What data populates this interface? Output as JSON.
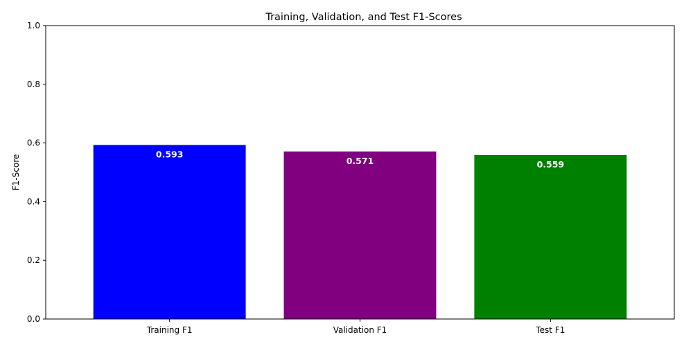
{
  "chart_data": {
    "type": "bar",
    "title": "Training, Validation, and Test F1-Scores",
    "xlabel": "",
    "ylabel": "F1-Score",
    "categories": [
      "Training F1",
      "Validation F1",
      "Test F1"
    ],
    "values": [
      0.593,
      0.571,
      0.559
    ],
    "value_labels": [
      "0.593",
      "0.571",
      "0.559"
    ],
    "colors": [
      "#0000ff",
      "#800080",
      "#008000"
    ],
    "ylim": [
      0,
      1.0
    ],
    "yticks": [
      0.0,
      0.2,
      0.4,
      0.6,
      0.8,
      1.0
    ],
    "ytick_labels": [
      "0.0",
      "0.2",
      "0.4",
      "0.6",
      "0.8",
      "1.0"
    ],
    "grid": false,
    "legend": false
  }
}
